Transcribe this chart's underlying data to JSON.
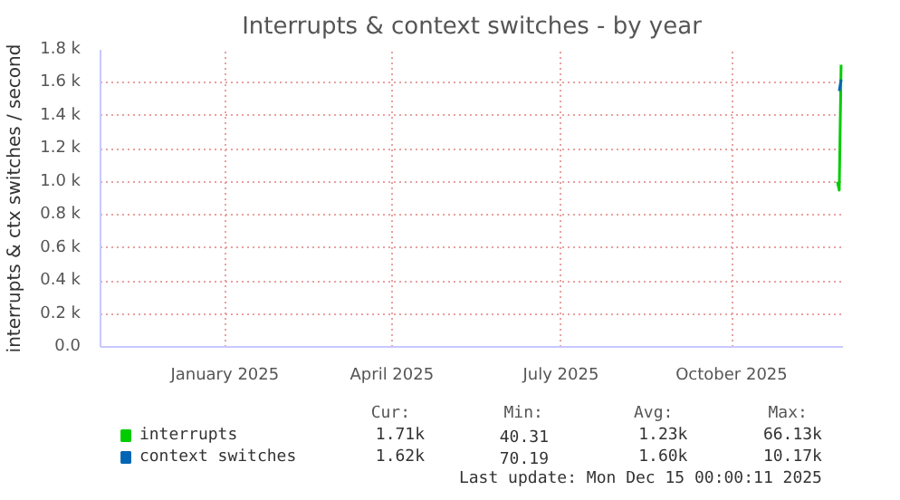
{
  "chart_data": {
    "type": "line",
    "title": "Interrupts & context switches - by year",
    "ylabel": "interrupts & ctx switches / second",
    "xlim": [
      "2024-11-10",
      "2025-12-15"
    ],
    "ylim": [
      0,
      1.8
    ],
    "xticks": [
      {
        "value": "2025-01-16",
        "label": "January 2025"
      },
      {
        "value": "2025-04-16",
        "label": "April 2025"
      },
      {
        "value": "2025-07-16",
        "label": "July 2025"
      },
      {
        "value": "2025-10-16",
        "label": "October 2025"
      }
    ],
    "yticks": [
      {
        "value": 0,
        "label": "0.0"
      },
      {
        "value": 0.2,
        "label": "0.2 k"
      },
      {
        "value": 0.4,
        "label": "0.4 k"
      },
      {
        "value": 0.6,
        "label": "0.6 k"
      },
      {
        "value": 0.8,
        "label": "0.8 k"
      },
      {
        "value": 1.0,
        "label": "1.0 k"
      },
      {
        "value": 1.2,
        "label": "1.2 k"
      },
      {
        "value": 1.4,
        "label": "1.4 k"
      },
      {
        "value": 1.6,
        "label": "1.6 k"
      },
      {
        "value": 1.8,
        "label": "1.8 k"
      }
    ],
    "grid": true,
    "legend": "bottom",
    "marker": "none",
    "line_style": "solid",
    "series": [
      {
        "name": "interrupts",
        "color": "#00cc00",
        "x": [
          "2025-12-12",
          "2025-12-13",
          "2025-12-14"
        ],
        "values": [
          1.0,
          0.95,
          1.71
        ]
      },
      {
        "name": "context switches",
        "color": "#0066b3",
        "x": [
          "2025-12-13",
          "2025-12-14"
        ],
        "values": [
          1.55,
          1.62
        ]
      }
    ],
    "annotations": [
      "Cur:",
      "Min:",
      "Avg:",
      "Max:",
      "1.71k",
      "40.31",
      "1.23k",
      "66.13k",
      "1.62k",
      "70.19",
      "1.60k",
      "10.17k",
      "Last update: Mon Dec 15 00:00:11 2025"
    ]
  }
}
